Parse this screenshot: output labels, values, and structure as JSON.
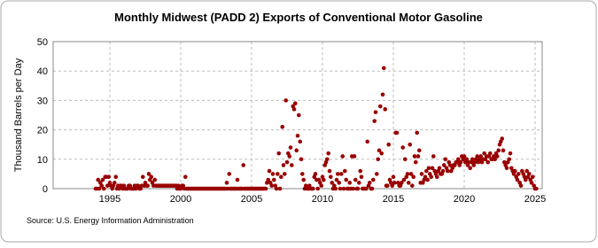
{
  "chart_data": {
    "type": "scatter",
    "title": "Monthly Midwest (PADD 2) Exports of Conventional Motor Gasoline",
    "y_label": "Thousand Barrels per Day",
    "source": "Source: U.S. Energy Information Administration",
    "xlim": [
      1991,
      2025.5
    ],
    "xticks": [
      1995,
      2000,
      2005,
      2010,
      2015,
      2020,
      2025
    ],
    "ylim": [
      0,
      50
    ],
    "yticks": [
      0,
      10,
      20,
      30,
      40,
      50
    ],
    "grid": true,
    "series": [
      {
        "name": "Exports",
        "color": "#990000",
        "x": [
          1994,
          1994.08,
          1994.17,
          1994.25,
          1994.33,
          1994.42,
          1994.5,
          1994.58,
          1994.67,
          1994.75,
          1994.83,
          1994.92,
          1995,
          1995.08,
          1995.17,
          1995.25,
          1995.33,
          1995.42,
          1995.5,
          1995.58,
          1995.67,
          1995.75,
          1995.83,
          1995.92,
          1996,
          1996.08,
          1996.17,
          1996.25,
          1996.33,
          1996.42,
          1996.5,
          1996.58,
          1996.67,
          1996.75,
          1996.83,
          1996.92,
          1997,
          1997.08,
          1997.17,
          1997.25,
          1997.33,
          1997.42,
          1997.5,
          1997.58,
          1997.67,
          1997.75,
          1997.83,
          1997.92,
          1998,
          1998.08,
          1998.17,
          1998.25,
          1998.33,
          1998.42,
          1998.5,
          1998.58,
          1998.67,
          1998.75,
          1998.83,
          1998.92,
          1999,
          1999.08,
          1999.17,
          1999.25,
          1999.33,
          1999.42,
          1999.5,
          1999.58,
          1999.67,
          1999.75,
          1999.83,
          1999.92,
          2000,
          2000.08,
          2000.17,
          2000.25,
          2000.33,
          2000.42,
          2000.5,
          2000.58,
          2000.67,
          2000.75,
          2000.83,
          2000.92,
          2001,
          2001.08,
          2001.17,
          2001.25,
          2001.33,
          2001.42,
          2001.5,
          2001.58,
          2001.67,
          2001.75,
          2001.83,
          2001.92,
          2002,
          2002.08,
          2002.17,
          2002.25,
          2002.33,
          2002.42,
          2002.5,
          2002.58,
          2002.67,
          2002.75,
          2002.83,
          2002.92,
          2003,
          2003.08,
          2003.17,
          2003.25,
          2003.33,
          2003.42,
          2003.5,
          2003.58,
          2003.67,
          2003.75,
          2003.83,
          2003.92,
          2004,
          2004.08,
          2004.17,
          2004.25,
          2004.33,
          2004.42,
          2004.5,
          2004.58,
          2004.67,
          2004.75,
          2004.83,
          2004.92,
          2005,
          2005.08,
          2005.17,
          2005.25,
          2005.33,
          2005.42,
          2005.5,
          2005.58,
          2005.67,
          2005.75,
          2005.83,
          2005.92,
          2006,
          2006.08,
          2006.17,
          2006.25,
          2006.33,
          2006.42,
          2006.5,
          2006.58,
          2006.67,
          2006.75,
          2006.83,
          2006.92,
          2007,
          2007.08,
          2007.17,
          2007.25,
          2007.33,
          2007.42,
          2007.5,
          2007.58,
          2007.67,
          2007.75,
          2007.83,
          2007.92,
          2008,
          2008.08,
          2008.17,
          2008.25,
          2008.33,
          2008.42,
          2008.5,
          2008.58,
          2008.67,
          2008.75,
          2008.83,
          2008.92,
          2009,
          2009.08,
          2009.17,
          2009.25,
          2009.33,
          2009.42,
          2009.5,
          2009.58,
          2009.67,
          2009.75,
          2009.83,
          2009.92,
          2010,
          2010.08,
          2010.17,
          2010.25,
          2010.33,
          2010.42,
          2010.5,
          2010.58,
          2010.67,
          2010.75,
          2010.83,
          2010.92,
          2011,
          2011.08,
          2011.17,
          2011.25,
          2011.33,
          2011.42,
          2011.5,
          2011.58,
          2011.67,
          2011.75,
          2011.83,
          2011.92,
          2012,
          2012.08,
          2012.17,
          2012.25,
          2012.33,
          2012.42,
          2012.5,
          2012.58,
          2012.67,
          2012.75,
          2012.83,
          2012.92,
          2013,
          2013.08,
          2013.17,
          2013.25,
          2013.33,
          2013.42,
          2013.5,
          2013.58,
          2013.67,
          2013.75,
          2013.83,
          2013.92,
          2014,
          2014.08,
          2014.17,
          2014.25,
          2014.33,
          2014.42,
          2014.5,
          2014.58,
          2014.67,
          2014.75,
          2014.83,
          2014.92,
          2015,
          2015.08,
          2015.17,
          2015.25,
          2015.33,
          2015.42,
          2015.5,
          2015.58,
          2015.67,
          2015.75,
          2015.83,
          2015.92,
          2016,
          2016.08,
          2016.17,
          2016.25,
          2016.33,
          2016.42,
          2016.5,
          2016.58,
          2016.67,
          2016.75,
          2016.83,
          2016.92,
          2017,
          2017.08,
          2017.17,
          2017.25,
          2017.33,
          2017.42,
          2017.5,
          2017.58,
          2017.67,
          2017.75,
          2017.83,
          2017.92,
          2018,
          2018.08,
          2018.17,
          2018.25,
          2018.33,
          2018.42,
          2018.5,
          2018.58,
          2018.67,
          2018.75,
          2018.83,
          2018.92,
          2019,
          2019.08,
          2019.17,
          2019.25,
          2019.33,
          2019.42,
          2019.5,
          2019.58,
          2019.67,
          2019.75,
          2019.83,
          2019.92,
          2020,
          2020.08,
          2020.17,
          2020.25,
          2020.33,
          2020.42,
          2020.5,
          2020.58,
          2020.67,
          2020.75,
          2020.83,
          2020.92,
          2021,
          2021.08,
          2021.17,
          2021.25,
          2021.33,
          2021.42,
          2021.5,
          2021.58,
          2021.67,
          2021.75,
          2021.83,
          2021.92,
          2022,
          2022.08,
          2022.17,
          2022.25,
          2022.33,
          2022.42,
          2022.5,
          2022.58,
          2022.67,
          2022.75,
          2022.83,
          2022.92,
          2023,
          2023.08,
          2023.17,
          2023.25,
          2023.33,
          2023.42,
          2023.5,
          2023.58,
          2023.67,
          2023.75,
          2023.83,
          2023.92,
          2024,
          2024.08,
          2024.17,
          2024.25,
          2024.33,
          2024.42,
          2024.5,
          2024.58,
          2024.67,
          2024.75,
          2024.83,
          2024.92,
          2025,
          2025.08
        ],
        "values": [
          0,
          0,
          3,
          0,
          2,
          1,
          3,
          0,
          4,
          4,
          1,
          4,
          2,
          1,
          0,
          1,
          2,
          4,
          0,
          1,
          0,
          1,
          1,
          0,
          1,
          0,
          0,
          0,
          1,
          1,
          0,
          0,
          0,
          1,
          0,
          1,
          1,
          0,
          0,
          1,
          4,
          1,
          2,
          1,
          1,
          5,
          3,
          4,
          2,
          1,
          3,
          1,
          1,
          1,
          1,
          1,
          1,
          1,
          1,
          1,
          1,
          1,
          1,
          1,
          1,
          1,
          1,
          1,
          1,
          0,
          1,
          0,
          0,
          1,
          1,
          0,
          4,
          0,
          0,
          0,
          0,
          0,
          0,
          0,
          0,
          0,
          0,
          0,
          0,
          0,
          0,
          0,
          0,
          0,
          0,
          0,
          0,
          0,
          0,
          0,
          0,
          0,
          0,
          0,
          0,
          0,
          0,
          0,
          0,
          0,
          0,
          2,
          0,
          5,
          0,
          0,
          0,
          0,
          0,
          0,
          3,
          0,
          0,
          0,
          0,
          8,
          0,
          0,
          0,
          0,
          0,
          0,
          0,
          0,
          0,
          0,
          0,
          0,
          0,
          0,
          0,
          0,
          0,
          0,
          0,
          2,
          3,
          6,
          2,
          1,
          5,
          3,
          1,
          0,
          5,
          12,
          0,
          4,
          21,
          8,
          5,
          30,
          9,
          12,
          11,
          14,
          8,
          28,
          27,
          29,
          13,
          18,
          25,
          16,
          10,
          5,
          3,
          0,
          1,
          0,
          0,
          1,
          0,
          0,
          0,
          4,
          5,
          3,
          0,
          3,
          2,
          1,
          4,
          3,
          8,
          9,
          10,
          12,
          6,
          4,
          2,
          0,
          1,
          0,
          3,
          5,
          2,
          0,
          5,
          11,
          0,
          6,
          3,
          0,
          0,
          2,
          0,
          11,
          0,
          11,
          3,
          0,
          0,
          2,
          6,
          4,
          0,
          0,
          0,
          0,
          16,
          1,
          2,
          0,
          0,
          3,
          23,
          26,
          5,
          10,
          13,
          28,
          12,
          32,
          41,
          27,
          1,
          1,
          15,
          3,
          2,
          1,
          4,
          2,
          19,
          19,
          2,
          1,
          1,
          2,
          14,
          3,
          10,
          4,
          5,
          2,
          15,
          5,
          1,
          4,
          11,
          9,
          19,
          11,
          13,
          2,
          5,
          2,
          3,
          4,
          6,
          3,
          7,
          5,
          4,
          7,
          11,
          6,
          5,
          4,
          6,
          7,
          5,
          5,
          6,
          8,
          10,
          7,
          6,
          9,
          8,
          6,
          7,
          8,
          8,
          9,
          9,
          10,
          8,
          9,
          11,
          10,
          11,
          9,
          10,
          8,
          9,
          7,
          9,
          10,
          8,
          9,
          10,
          11,
          9,
          10,
          11,
          9,
          10,
          12,
          10,
          11,
          9,
          11,
          12,
          10,
          10,
          11,
          10,
          12,
          11,
          13,
          15,
          16,
          17,
          13,
          9,
          8,
          7,
          9,
          10,
          12,
          7,
          6,
          5,
          6,
          4,
          3,
          5,
          2,
          1,
          6,
          5,
          4,
          3,
          6,
          4,
          5,
          3,
          2,
          4,
          1,
          0,
          0
        ]
      }
    ]
  }
}
